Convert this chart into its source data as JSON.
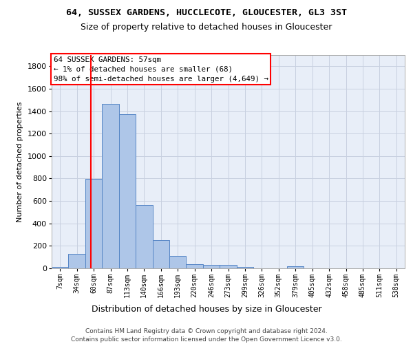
{
  "title": "64, SUSSEX GARDENS, HUCCLECOTE, GLOUCESTER, GL3 3ST",
  "subtitle": "Size of property relative to detached houses in Gloucester",
  "xlabel": "Distribution of detached houses by size in Gloucester",
  "ylabel": "Number of detached properties",
  "categories": [
    "7sqm",
    "34sqm",
    "60sqm",
    "87sqm",
    "113sqm",
    "140sqm",
    "166sqm",
    "193sqm",
    "220sqm",
    "246sqm",
    "273sqm",
    "299sqm",
    "326sqm",
    "352sqm",
    "379sqm",
    "405sqm",
    "432sqm",
    "458sqm",
    "485sqm",
    "511sqm",
    "538sqm"
  ],
  "values": [
    10,
    130,
    795,
    1465,
    1370,
    565,
    250,
    110,
    35,
    30,
    30,
    15,
    0,
    0,
    20,
    0,
    0,
    0,
    0,
    0,
    0
  ],
  "bar_color": "#aec6e8",
  "bar_edge_color": "#5585c5",
  "annotation_text_lines": [
    "64 SUSSEX GARDENS: 57sqm",
    "← 1% of detached houses are smaller (68)",
    "98% of semi-detached houses are larger (4,649) →"
  ],
  "annotation_box_color": "white",
  "annotation_box_edge_color": "red",
  "vline_color": "red",
  "vline_x": 1.85,
  "ylim": [
    0,
    1900
  ],
  "yticks": [
    0,
    200,
    400,
    600,
    800,
    1000,
    1200,
    1400,
    1600,
    1800
  ],
  "footer_line1": "Contains HM Land Registry data © Crown copyright and database right 2024.",
  "footer_line2": "Contains public sector information licensed under the Open Government Licence v3.0.",
  "bg_color": "#e8eef8",
  "grid_color": "#c8d0e0",
  "title_fontsize": 9.5,
  "subtitle_fontsize": 9,
  "ylabel_fontsize": 8,
  "xtick_fontsize": 7,
  "ytick_fontsize": 8,
  "footer_fontsize": 6.5
}
